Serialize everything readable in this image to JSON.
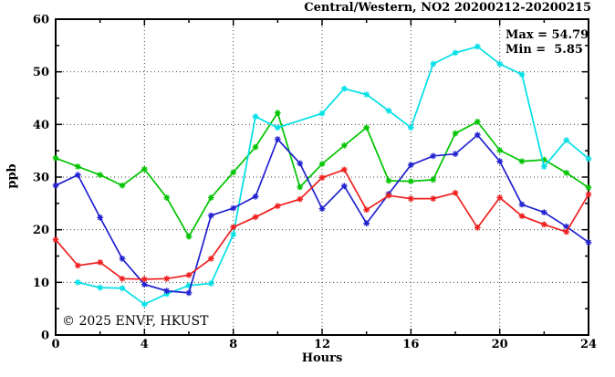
{
  "header": {
    "title": "Central/Western, NO2 20200212-20200215"
  },
  "annotations": {
    "max_label": "Max = 54.79",
    "min_label": "Min =  5.85"
  },
  "watermark": "© 2025 ENVF, HKUST",
  "colors": {
    "axis": "#000000",
    "grid": "#404040",
    "watermark_gray": "#e0e0e0",
    "series_green": "#00c400",
    "series_cyan": "#00e0e6",
    "series_blue": "#2222d0",
    "series_red": "#ee2020"
  },
  "chart_data": {
    "type": "line",
    "title": "Central/Western, NO2 20200212-20200215",
    "xlabel": "Hours",
    "ylabel": "ppb",
    "xlim": [
      0,
      24
    ],
    "ylim": [
      0,
      60
    ],
    "x_major_ticks": [
      0,
      4,
      8,
      12,
      16,
      20,
      24
    ],
    "x_minor_ticks": [
      2,
      6,
      10,
      14,
      18,
      22
    ],
    "y_major_ticks": [
      0,
      10,
      20,
      30,
      40,
      50,
      60
    ],
    "y_minor_ticks": [
      5,
      15,
      25,
      35,
      45,
      55
    ],
    "grid_x": [
      4,
      8,
      12,
      16,
      20
    ],
    "grid_y": [
      10,
      20,
      30,
      40,
      50
    ],
    "legend": "none",
    "marker": "asterisk",
    "stats": {
      "max": 54.79,
      "min": 5.85
    },
    "x": [
      0,
      1,
      2,
      3,
      4,
      5,
      6,
      7,
      8,
      9,
      10,
      11,
      12,
      13,
      14,
      15,
      16,
      17,
      18,
      19,
      20,
      21,
      22,
      23,
      24
    ],
    "series": [
      {
        "name": "day-1-green",
        "color": "#00c400",
        "values": [
          33.6,
          32.0,
          30.4,
          28.4,
          31.5,
          26.1,
          18.7,
          26.1,
          30.9,
          35.7,
          42.2,
          28.1,
          32.5,
          36.0,
          39.4,
          29.3,
          29.2,
          29.5,
          38.3,
          40.5,
          35.1,
          33.0,
          33.3,
          30.8,
          28.0
        ]
      },
      {
        "name": "day-2-cyan",
        "color": "#00e0e6",
        "values": [
          null,
          10.0,
          9.0,
          8.9,
          5.85,
          7.8,
          9.4,
          9.8,
          19.1,
          41.5,
          39.4,
          null,
          42.1,
          46.8,
          45.7,
          42.6,
          39.4,
          51.5,
          53.6,
          54.79,
          51.5,
          49.5,
          32.0,
          37.0,
          33.5
        ]
      },
      {
        "name": "day-3-blue",
        "color": "#2222d0",
        "values": [
          28.4,
          30.4,
          22.3,
          14.5,
          9.6,
          8.4,
          8.0,
          22.7,
          24.1,
          26.3,
          37.2,
          32.6,
          24.0,
          28.3,
          21.2,
          26.8,
          32.3,
          34.0,
          34.4,
          38.0,
          33.0,
          24.8,
          23.3,
          20.6,
          17.6
        ]
      },
      {
        "name": "day-4-red",
        "color": "#ee2020",
        "values": [
          18.1,
          13.2,
          13.8,
          10.7,
          10.6,
          10.7,
          11.4,
          14.5,
          20.5,
          22.4,
          24.5,
          25.8,
          29.9,
          31.4,
          23.8,
          26.5,
          25.9,
          25.9,
          27.0,
          20.4,
          26.1,
          22.6,
          21.0,
          19.6,
          26.7
        ]
      }
    ]
  }
}
